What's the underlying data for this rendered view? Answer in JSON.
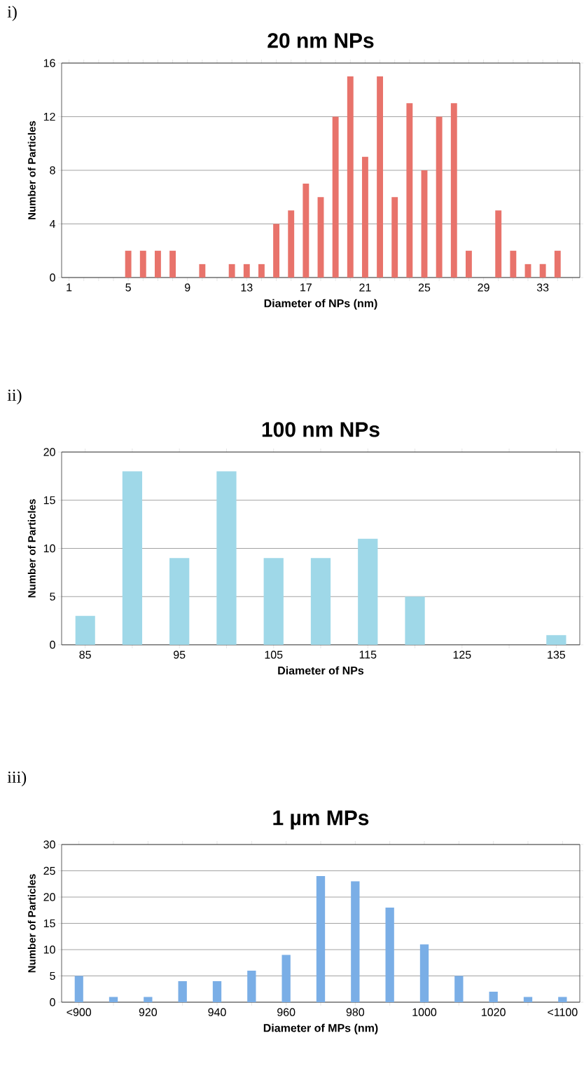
{
  "chart_data": [
    {
      "type": "bar",
      "title": "20 nm NPs",
      "xlabel": "Diameter of NPs (nm)",
      "ylabel": "Number of Particles",
      "annotations": [
        "i)"
      ],
      "categories": [
        "1",
        null,
        null,
        null,
        "5",
        null,
        null,
        null,
        "9",
        null,
        null,
        null,
        "13",
        null,
        null,
        null,
        "17",
        null,
        null,
        null,
        "21",
        null,
        null,
        null,
        "25",
        null,
        null,
        null,
        "29",
        null,
        null,
        null,
        "33",
        null,
        null
      ],
      "values": [
        0,
        0,
        0,
        0,
        2,
        2,
        2,
        2,
        0,
        1,
        0,
        1,
        1,
        1,
        4,
        5,
        7,
        6,
        12,
        15,
        9,
        15,
        6,
        13,
        8,
        12,
        13,
        2,
        0,
        5,
        2,
        1,
        1,
        2,
        0
      ],
      "color": "#e8736b",
      "ylim": [
        0,
        16
      ],
      "yticks": [
        0,
        4,
        8,
        12,
        16
      ],
      "grid": "y"
    },
    {
      "type": "bar",
      "title": "100 nm NPs",
      "xlabel": "Diameter of NPs",
      "ylabel": "Number of Particles",
      "annotations": [
        "ii)"
      ],
      "categories": [
        "85",
        null,
        "95",
        null,
        "105",
        null,
        "115",
        null,
        "125",
        null,
        "135"
      ],
      "values": [
        3,
        18,
        9,
        18,
        9,
        9,
        11,
        5,
        0,
        0,
        1
      ],
      "color": "#9fd8e8",
      "ylim": [
        0,
        20
      ],
      "yticks": [
        0,
        5,
        10,
        15,
        20
      ],
      "grid": "y"
    },
    {
      "type": "bar",
      "title": "1 µm MPs",
      "xlabel": "Diameter of MPs (nm)",
      "ylabel": "Number of Particles",
      "annotations": [
        "iii)"
      ],
      "categories": [
        "<900",
        null,
        "920",
        null,
        "940",
        null,
        "960",
        null,
        "980",
        null,
        "1000",
        null,
        "1020",
        null,
        "<1100"
      ],
      "values": [
        5,
        1,
        1,
        4,
        4,
        6,
        9,
        24,
        23,
        18,
        11,
        5,
        2,
        1,
        1
      ],
      "color": "#7aaee6",
      "ylim": [
        0,
        30
      ],
      "yticks": [
        0,
        5,
        10,
        15,
        20,
        25,
        30
      ],
      "grid": "y"
    }
  ]
}
